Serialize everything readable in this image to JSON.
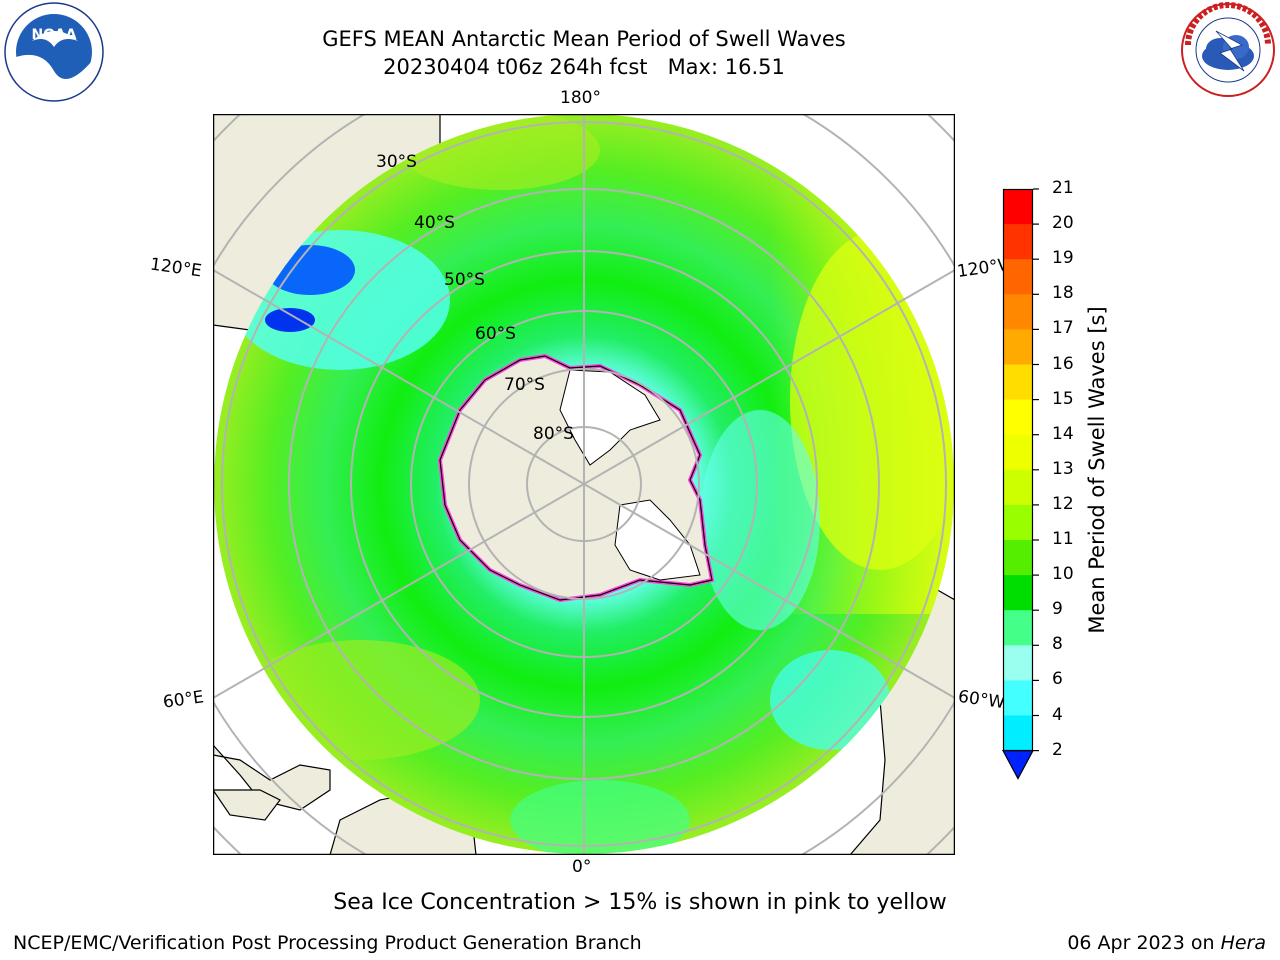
{
  "header": {
    "title_line1": "GEFS MEAN Antarctic Mean Period of Swell Waves",
    "title_line2": "20230404 t06z 264h fcst   Max: 16.51"
  },
  "logos": {
    "left": {
      "name": "noaa-logo",
      "text": "NOAA"
    },
    "right": {
      "name": "nws-logo",
      "text": "NATIONAL WEATHER SERVICE"
    }
  },
  "map": {
    "longitude_labels": {
      "top": "180°",
      "bottom": "0°",
      "upper_left": "120°E",
      "upper_right": "120°W",
      "lower_left": "60°E",
      "lower_right": "60°W"
    },
    "latitude_labels": [
      "30°S",
      "40°S",
      "50°S",
      "60°S",
      "70°S",
      "80°S"
    ],
    "colors": {
      "land": "#eeecdc",
      "ice_shelf": "#ffffff",
      "graticule": "#b3b3b3",
      "sea_ice_edge": "#ff44dd"
    }
  },
  "colorbar": {
    "label": "Mean Period of Swell Waves [s]",
    "ticks": [
      "21",
      "20",
      "19",
      "18",
      "17",
      "16",
      "15",
      "14",
      "13",
      "12",
      "11",
      "10",
      "9",
      "8",
      "6",
      "4",
      "2"
    ],
    "colors": [
      "#ff0000",
      "#ff3300",
      "#ff6600",
      "#ff8800",
      "#ffaa00",
      "#ffdd00",
      "#ffff00",
      "#eeff00",
      "#ccff00",
      "#99ff00",
      "#55ee00",
      "#00dd00",
      "#44ff88",
      "#99ffee",
      "#44ffff",
      "#00eeff",
      "#0099ff",
      "#0022ff"
    ],
    "extend": "min"
  },
  "caption": "Sea Ice Concentration > 15% is shown in pink to yellow",
  "footer": {
    "left": "NCEP/EMC/Verification Post Processing Product Generation Branch",
    "right_prefix": "06 Apr 2023 on ",
    "right_machine": "Hera"
  }
}
